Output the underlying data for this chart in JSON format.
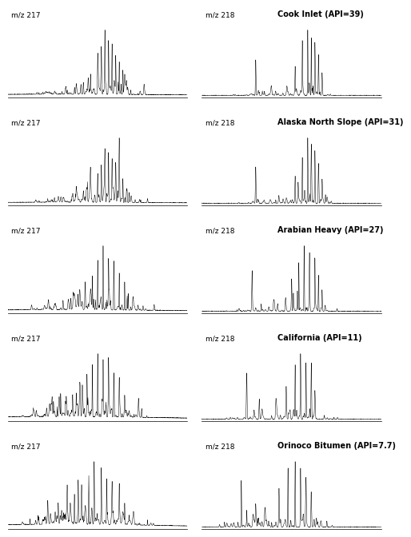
{
  "rows": [
    {
      "label217": "m/z 217",
      "label218": "m/z 218",
      "title": "Cook Inlet (API=39)"
    },
    {
      "label217": "m/z 217",
      "label218": "m/z 218",
      "title": "Alaska North Slope (API=31)"
    },
    {
      "label217": "m/z 217",
      "label218": "m/z 218",
      "title": "Arabian Heavy (API=27)"
    },
    {
      "label217": "m/z 217",
      "label218": "m/z 218",
      "title": "California (API=11)"
    },
    {
      "label217": "m/z 217",
      "label218": "m/z 218",
      "title": "Orinoco Bitumen (API=7.7)"
    }
  ],
  "line_color": "#000000",
  "bg_color": "#ffffff",
  "label_fontsize": 6.5,
  "title_fontsize": 7.0
}
